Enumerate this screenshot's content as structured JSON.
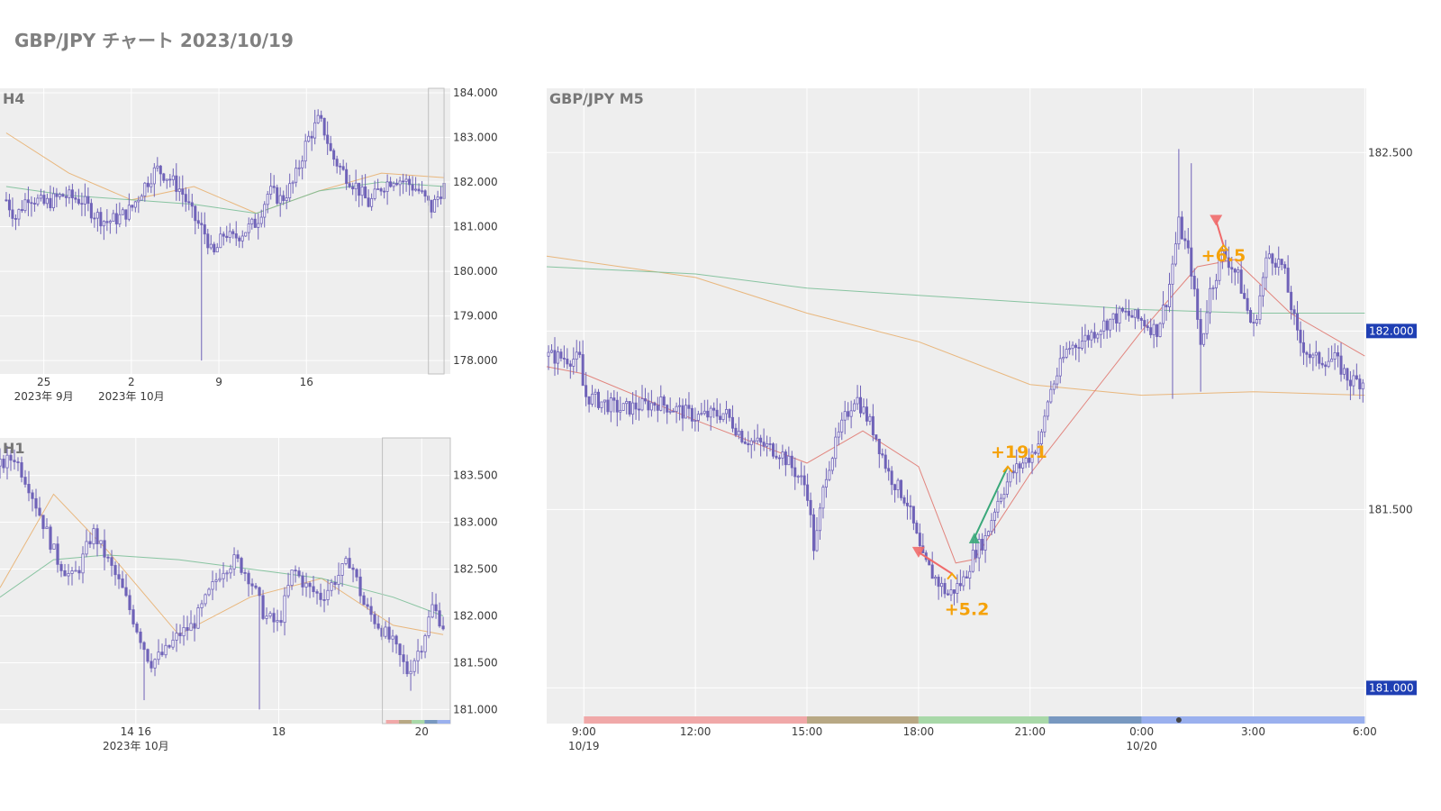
{
  "page": {
    "title": "GBP/JPY チャート 2023/10/19"
  },
  "colors": {
    "candle": "#6f62b8",
    "plot_bg": "#eeeeee",
    "grid": "#ffffff",
    "ma_short": "#e07870",
    "ma_mid": "#e8b070",
    "ma_long": "#7cbf98",
    "annotation": "#f5a20a",
    "price_tag_bg": "#1f3fb4",
    "entry_short": "#f06a6a",
    "entry_long": "#3aa87a"
  },
  "chart_data": [
    {
      "id": "h4",
      "type": "candlestick",
      "title": "H4",
      "ylim": [
        177.7,
        184.1
      ],
      "y_ticks": [
        "184.000",
        "183.000",
        "182.000",
        "181.000",
        "180.000",
        "179.000",
        "178.000"
      ],
      "x_ticks": [
        {
          "label": "25",
          "sub": "2023年 9月"
        },
        {
          "label": "2",
          "sub": "2023年 10月"
        },
        {
          "label": "9",
          "sub": ""
        },
        {
          "label": "16",
          "sub": ""
        }
      ],
      "highlight_window": "last 2 bars (current day)",
      "ohlc_path": [
        [
          0,
          181.6
        ],
        [
          3,
          181.2
        ],
        [
          7,
          181.7
        ],
        [
          12,
          181.5
        ],
        [
          18,
          181.7
        ],
        [
          24,
          181.6
        ],
        [
          28,
          181.3
        ],
        [
          32,
          181.1
        ],
        [
          36,
          181.2
        ],
        [
          40,
          181.4
        ],
        [
          44,
          181.9
        ],
        [
          48,
          182.3
        ],
        [
          52,
          182.1
        ],
        [
          56,
          181.8
        ],
        [
          60,
          181.2
        ],
        [
          64,
          180.8
        ],
        [
          66,
          180.3
        ],
        [
          68,
          180.6
        ],
        [
          70,
          180.9
        ],
        [
          72,
          180.7
        ],
        [
          76,
          180.9
        ],
        [
          80,
          181.1
        ],
        [
          84,
          181.8
        ],
        [
          88,
          181.6
        ],
        [
          92,
          182.0
        ],
        [
          96,
          182.9
        ],
        [
          100,
          183.4
        ],
        [
          102,
          183.1
        ],
        [
          104,
          182.6
        ],
        [
          108,
          182.2
        ],
        [
          112,
          181.9
        ],
        [
          116,
          181.5
        ],
        [
          120,
          181.9
        ],
        [
          124,
          182.1
        ],
        [
          128,
          182.0
        ],
        [
          132,
          181.8
        ],
        [
          136,
          181.4
        ],
        [
          139,
          181.8
        ],
        [
          140,
          181.9
        ]
      ],
      "ma_mid": [
        [
          0,
          183.1
        ],
        [
          20,
          182.2
        ],
        [
          40,
          181.6
        ],
        [
          60,
          181.9
        ],
        [
          80,
          181.3
        ],
        [
          100,
          181.8
        ],
        [
          120,
          182.2
        ],
        [
          140,
          182.1
        ]
      ],
      "ma_long": [
        [
          0,
          181.9
        ],
        [
          20,
          181.7
        ],
        [
          40,
          181.6
        ],
        [
          60,
          181.5
        ],
        [
          80,
          181.3
        ],
        [
          100,
          181.8
        ],
        [
          120,
          182.0
        ],
        [
          140,
          181.9
        ]
      ],
      "spike_low": {
        "bar": 62,
        "low": 178.0
      }
    },
    {
      "id": "h1",
      "type": "candlestick",
      "title": "H1",
      "ylim": [
        180.85,
        183.9
      ],
      "y_ticks": [
        "183.500",
        "183.000",
        "182.500",
        "182.000",
        "181.500",
        "181.000"
      ],
      "x_ticks": [
        {
          "label": "14 16",
          "sub": "2023年 10月"
        },
        {
          "label": "18",
          "sub": ""
        },
        {
          "label": "20",
          "sub": ""
        }
      ],
      "highlight_window": "last 22 hours (current day)",
      "ohlc_path": [
        [
          0,
          183.6
        ],
        [
          4,
          183.7
        ],
        [
          8,
          183.4
        ],
        [
          12,
          183.0
        ],
        [
          16,
          182.6
        ],
        [
          20,
          182.4
        ],
        [
          22,
          182.5
        ],
        [
          26,
          182.9
        ],
        [
          30,
          182.6
        ],
        [
          34,
          182.3
        ],
        [
          38,
          181.9
        ],
        [
          42,
          181.5
        ],
        [
          46,
          181.6
        ],
        [
          50,
          181.8
        ],
        [
          54,
          181.9
        ],
        [
          58,
          182.2
        ],
        [
          62,
          182.5
        ],
        [
          66,
          182.6
        ],
        [
          70,
          182.4
        ],
        [
          74,
          182.0
        ],
        [
          78,
          181.9
        ],
        [
          82,
          182.5
        ],
        [
          86,
          182.3
        ],
        [
          90,
          182.2
        ],
        [
          94,
          182.4
        ],
        [
          98,
          182.6
        ],
        [
          102,
          182.1
        ],
        [
          106,
          181.9
        ],
        [
          110,
          181.7
        ],
        [
          114,
          181.4
        ],
        [
          118,
          181.7
        ],
        [
          121,
          182.1
        ],
        [
          124,
          181.9
        ]
      ],
      "ma_mid": [
        [
          0,
          182.3
        ],
        [
          15,
          183.3
        ],
        [
          30,
          182.7
        ],
        [
          50,
          181.8
        ],
        [
          70,
          182.2
        ],
        [
          90,
          182.4
        ],
        [
          110,
          181.9
        ],
        [
          124,
          181.8
        ]
      ],
      "ma_long": [
        [
          0,
          182.2
        ],
        [
          15,
          182.6
        ],
        [
          30,
          182.65
        ],
        [
          50,
          182.6
        ],
        [
          70,
          182.5
        ],
        [
          90,
          182.4
        ],
        [
          110,
          182.2
        ],
        [
          124,
          182.0
        ]
      ],
      "spike_lows": [
        {
          "bar": 72,
          "low": 181.0
        },
        {
          "bar": 40,
          "low": 181.1
        },
        {
          "bar": 114,
          "low": 181.2
        }
      ],
      "session_colors": [
        "#f0a8a8",
        "#b8a884",
        "#a8d8a8",
        "#7898c0",
        "#9ab0ee"
      ]
    },
    {
      "id": "m5",
      "type": "candlestick",
      "title": "GBP/JPY M5",
      "ylim": [
        180.9,
        182.68
      ],
      "y_ticks": [
        "182.500",
        "182.000",
        "181.500",
        "181.000"
      ],
      "price_tags": [
        "182.000",
        "181.000"
      ],
      "x_ticks": [
        {
          "label": "9:00",
          "sub": "10/19"
        },
        {
          "label": "12:00",
          "sub": ""
        },
        {
          "label": "15:00",
          "sub": ""
        },
        {
          "label": "18:00",
          "sub": ""
        },
        {
          "label": "21:00",
          "sub": ""
        },
        {
          "label": "0:00",
          "sub": "10/20"
        },
        {
          "label": "3:00",
          "sub": ""
        },
        {
          "label": "6:00",
          "sub": ""
        }
      ],
      "x_range_hours": [
        8,
        30
      ],
      "ohlc_path": [
        [
          8.0,
          181.93
        ],
        [
          8.9,
          181.92
        ],
        [
          9.0,
          181.82
        ],
        [
          9.5,
          181.8
        ],
        [
          10,
          181.78
        ],
        [
          11,
          181.8
        ],
        [
          12,
          181.76
        ],
        [
          12.8,
          181.77
        ],
        [
          13.3,
          181.7
        ],
        [
          14.3,
          181.66
        ],
        [
          15,
          181.56
        ],
        [
          15.2,
          181.38
        ],
        [
          15.5,
          181.6
        ],
        [
          16,
          181.75
        ],
        [
          16.3,
          181.82
        ],
        [
          16.8,
          181.72
        ],
        [
          17.2,
          181.6
        ],
        [
          17.7,
          181.52
        ],
        [
          18.1,
          181.36
        ],
        [
          18.5,
          181.3
        ],
        [
          18.8,
          181.26
        ],
        [
          19.2,
          181.3
        ],
        [
          19.5,
          181.38
        ],
        [
          19.8,
          181.42
        ],
        [
          20.1,
          181.52
        ],
        [
          20.5,
          181.6
        ],
        [
          21,
          181.65
        ],
        [
          21.3,
          181.7
        ],
        [
          21.5,
          181.82
        ],
        [
          22,
          181.95
        ],
        [
          22.5,
          181.98
        ],
        [
          23,
          182.02
        ],
        [
          23.5,
          182.05
        ],
        [
          24,
          182.03
        ],
        [
          24.4,
          182.0
        ],
        [
          24.7,
          182.1
        ],
        [
          25,
          182.3
        ],
        [
          25.3,
          182.2
        ],
        [
          25.6,
          181.95
        ],
        [
          25.8,
          182.1
        ],
        [
          26.2,
          182.22
        ],
        [
          26.6,
          182.15
        ],
        [
          27,
          182.0
        ],
        [
          27.4,
          182.22
        ],
        [
          27.8,
          182.18
        ],
        [
          28.2,
          181.98
        ],
        [
          28.6,
          181.92
        ],
        [
          29.2,
          181.92
        ],
        [
          29.6,
          181.86
        ],
        [
          29.9,
          181.86
        ]
      ],
      "spike_highs": [
        {
          "hour": 25.0,
          "high": 182.51
        },
        {
          "hour": 25.3,
          "high": 182.47
        }
      ],
      "spike_lows": [
        {
          "hour": 24.85,
          "high": 181.81
        },
        {
          "hour": 25.6,
          "high": 181.83
        }
      ],
      "ma_short": [
        [
          8,
          181.9
        ],
        [
          9,
          181.88
        ],
        [
          12,
          181.75
        ],
        [
          15,
          181.63
        ],
        [
          16.5,
          181.72
        ],
        [
          18,
          181.62
        ],
        [
          19,
          181.35
        ],
        [
          19.5,
          181.36
        ],
        [
          21,
          181.6
        ],
        [
          22.5,
          181.8
        ],
        [
          24,
          182.0
        ],
        [
          25.5,
          182.18
        ],
        [
          26.5,
          182.2
        ],
        [
          28,
          182.05
        ],
        [
          30,
          181.93
        ]
      ],
      "ma_mid": [
        [
          8,
          182.21
        ],
        [
          12,
          182.15
        ],
        [
          15,
          182.05
        ],
        [
          18,
          181.97
        ],
        [
          21,
          181.85
        ],
        [
          24,
          181.82
        ],
        [
          27,
          181.83
        ],
        [
          30,
          181.82
        ]
      ],
      "ma_long": [
        [
          8,
          182.18
        ],
        [
          12,
          182.16
        ],
        [
          15,
          182.12
        ],
        [
          18,
          182.1
        ],
        [
          21,
          182.08
        ],
        [
          24,
          182.06
        ],
        [
          27,
          182.05
        ],
        [
          30,
          182.05
        ]
      ],
      "trades": [
        {
          "label": "+5.2",
          "side": "short",
          "entry": [
            18.0,
            181.38
          ],
          "exit": [
            18.9,
            181.32
          ]
        },
        {
          "label": "+19.1",
          "side": "long",
          "entry": [
            19.5,
            181.42
          ],
          "exit": [
            20.4,
            181.62
          ]
        },
        {
          "label": "+6.5",
          "side": "short",
          "entry": [
            26.0,
            182.31
          ],
          "exit": [
            26.2,
            182.24
          ]
        }
      ],
      "sessions": [
        {
          "from": 9,
          "to": 15,
          "color": "#f0a8a8"
        },
        {
          "from": 15,
          "to": 18,
          "color": "#b8a884"
        },
        {
          "from": 18,
          "to": 21.5,
          "color": "#a8d8a8"
        },
        {
          "from": 21.5,
          "to": 24,
          "color": "#7898c0"
        },
        {
          "from": 24,
          "to": 30,
          "color": "#9ab0ee"
        }
      ],
      "marker_dot_hour": 25.0
    }
  ]
}
